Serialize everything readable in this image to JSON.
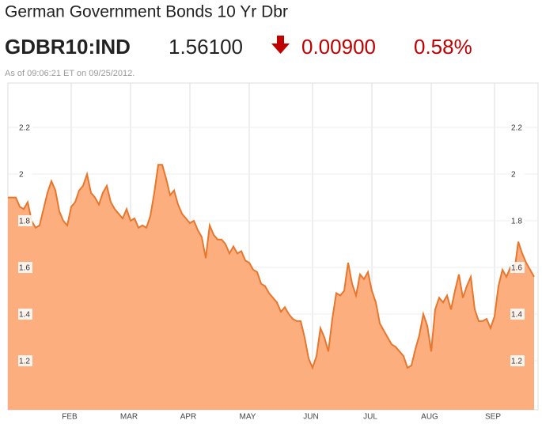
{
  "quote": {
    "ticker": "GDBR10:IND",
    "price": "1.56100",
    "change": "0.00900",
    "change_pct": "0.58%",
    "timestamp": "As of 09:06:21 ET on 09/25/2012."
  },
  "chart_data": {
    "type": "area",
    "title": "German Government Bonds 10 Yr Dbr",
    "color": "#e8762d",
    "fill": "#fdae7e",
    "values": [
      1.9,
      1.9,
      1.9,
      1.86,
      1.85,
      1.88,
      1.8,
      1.77,
      1.78,
      1.85,
      1.92,
      1.97,
      1.93,
      1.84,
      1.8,
      1.78,
      1.86,
      1.88,
      1.93,
      1.95,
      2.0,
      1.92,
      1.9,
      1.87,
      1.92,
      1.95,
      1.88,
      1.85,
      1.83,
      1.81,
      1.85,
      1.8,
      1.81,
      1.77,
      1.78,
      1.77,
      1.82,
      1.92,
      2.04,
      2.04,
      1.98,
      1.91,
      1.93,
      1.87,
      1.83,
      1.81,
      1.79,
      1.8,
      1.76,
      1.73,
      1.64,
      1.78,
      1.74,
      1.72,
      1.72,
      1.7,
      1.66,
      1.69,
      1.66,
      1.67,
      1.63,
      1.62,
      1.59,
      1.58,
      1.53,
      1.52,
      1.49,
      1.47,
      1.45,
      1.41,
      1.43,
      1.4,
      1.38,
      1.37,
      1.37,
      1.3,
      1.21,
      1.17,
      1.22,
      1.34,
      1.3,
      1.24,
      1.38,
      1.49,
      1.48,
      1.5,
      1.62,
      1.53,
      1.48,
      1.57,
      1.55,
      1.58,
      1.5,
      1.45,
      1.36,
      1.33,
      1.3,
      1.27,
      1.26,
      1.24,
      1.22,
      1.17,
      1.18,
      1.25,
      1.31,
      1.4,
      1.35,
      1.24,
      1.42,
      1.47,
      1.45,
      1.48,
      1.42,
      1.5,
      1.57,
      1.47,
      1.52,
      1.56,
      1.42,
      1.37,
      1.37,
      1.38,
      1.34,
      1.39,
      1.52,
      1.59,
      1.56,
      1.6,
      1.58,
      1.71,
      1.66,
      1.62,
      1.59,
      1.56
    ],
    "xlim": [
      0,
      133
    ],
    "xticks": [
      {
        "value": 16,
        "label": "FEB"
      },
      {
        "value": 31,
        "label": "MAR"
      },
      {
        "value": 46,
        "label": "APR"
      },
      {
        "value": 61,
        "label": "MAY"
      },
      {
        "value": 77,
        "label": "JUN"
      },
      {
        "value": 92,
        "label": "JUL"
      },
      {
        "value": 107,
        "label": "AUG"
      },
      {
        "value": 123,
        "label": "SEP"
      }
    ],
    "ylim": [
      0.99,
      2.39
    ],
    "yticks": [
      1.2,
      1.4,
      1.6,
      1.8,
      2,
      2.2
    ],
    "grid": true
  }
}
